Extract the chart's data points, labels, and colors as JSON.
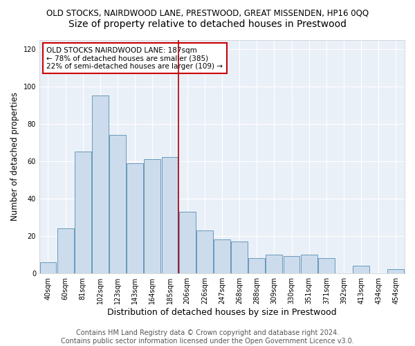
{
  "title1": "OLD STOCKS, NAIRDWOOD LANE, PRESTWOOD, GREAT MISSENDEN, HP16 0QQ",
  "title2": "Size of property relative to detached houses in Prestwood",
  "xlabel": "Distribution of detached houses by size in Prestwood",
  "ylabel": "Number of detached properties",
  "categories": [
    "40sqm",
    "60sqm",
    "81sqm",
    "102sqm",
    "123sqm",
    "143sqm",
    "164sqm",
    "185sqm",
    "206sqm",
    "226sqm",
    "247sqm",
    "268sqm",
    "288sqm",
    "309sqm",
    "330sqm",
    "351sqm",
    "371sqm",
    "392sqm",
    "413sqm",
    "434sqm",
    "454sqm"
  ],
  "values": [
    6,
    24,
    65,
    95,
    74,
    59,
    61,
    62,
    33,
    23,
    18,
    17,
    8,
    10,
    9,
    10,
    8,
    0,
    4,
    0,
    2
  ],
  "bar_color": "#ccdcec",
  "bar_edge_color": "#6699bb",
  "vline_x_index": 7,
  "vline_color": "#aa0000",
  "annotation_text": "OLD STOCKS NAIRDWOOD LANE: 187sqm\n← 78% of detached houses are smaller (385)\n22% of semi-detached houses are larger (109) →",
  "annotation_box_color": "#ffffff",
  "annotation_box_edge": "#cc0000",
  "ylim": [
    0,
    125
  ],
  "yticks": [
    0,
    20,
    40,
    60,
    80,
    100,
    120
  ],
  "background_color": "#eaf0f8",
  "footnote": "Contains HM Land Registry data © Crown copyright and database right 2024.\nContains public sector information licensed under the Open Government Licence v3.0.",
  "title1_fontsize": 8.5,
  "title2_fontsize": 10,
  "xlabel_fontsize": 9,
  "ylabel_fontsize": 8.5,
  "tick_fontsize": 7,
  "footnote_fontsize": 7,
  "annot_fontsize": 7.5
}
